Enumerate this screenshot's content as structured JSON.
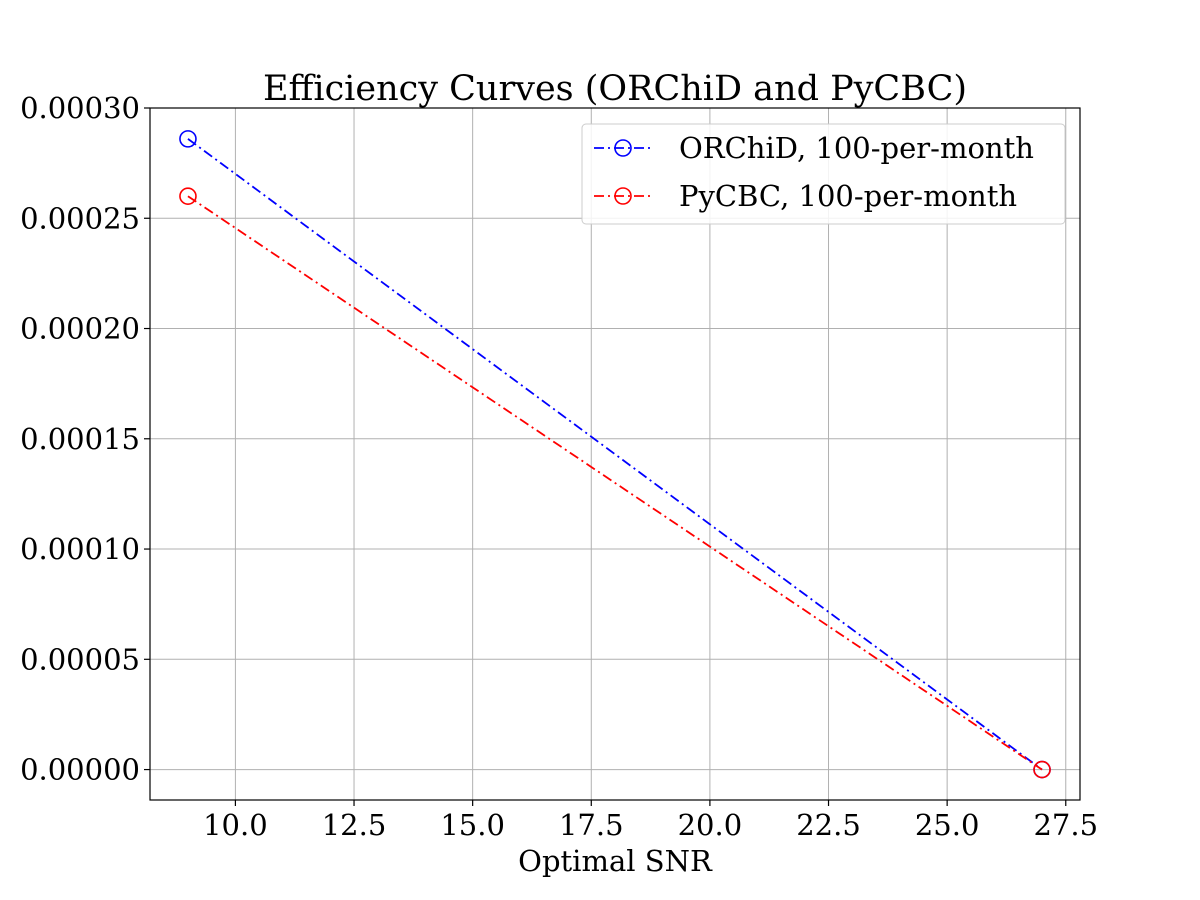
{
  "chart_data": {
    "type": "line",
    "title": "Efficiency Curves (ORChiD and PyCBC)",
    "xlabel": "Optimal SNR",
    "ylabel": "",
    "xlim": [
      8.2,
      27.8
    ],
    "ylim": [
      -1.38e-05,
      0.0003
    ],
    "x_ticks": [
      10.0,
      12.5,
      15.0,
      17.5,
      20.0,
      22.5,
      25.0,
      27.5
    ],
    "x_tick_labels": [
      "10.0",
      "12.5",
      "15.0",
      "17.5",
      "20.0",
      "22.5",
      "25.0",
      "27.5"
    ],
    "y_ticks": [
      0.0,
      5e-05,
      0.0001,
      0.00015,
      0.0002,
      0.00025,
      0.0003
    ],
    "y_tick_labels": [
      "0.00000",
      "0.00005",
      "0.00010",
      "0.00015",
      "0.00020",
      "0.00025",
      "0.00030"
    ],
    "grid": true,
    "legend_position": "top-right",
    "series": [
      {
        "name": "ORChiD, 100-per-month",
        "color": "#0000ff",
        "marker": "open-circle",
        "line_style": "dash-dot",
        "x": [
          9.0,
          27.0
        ],
        "y": [
          0.000286,
          0.0
        ]
      },
      {
        "name": "PyCBC, 100-per-month",
        "color": "#ff0000",
        "marker": "open-circle",
        "line_style": "dash-dot",
        "x": [
          9.0,
          27.0
        ],
        "y": [
          0.00026,
          0.0
        ]
      }
    ]
  }
}
